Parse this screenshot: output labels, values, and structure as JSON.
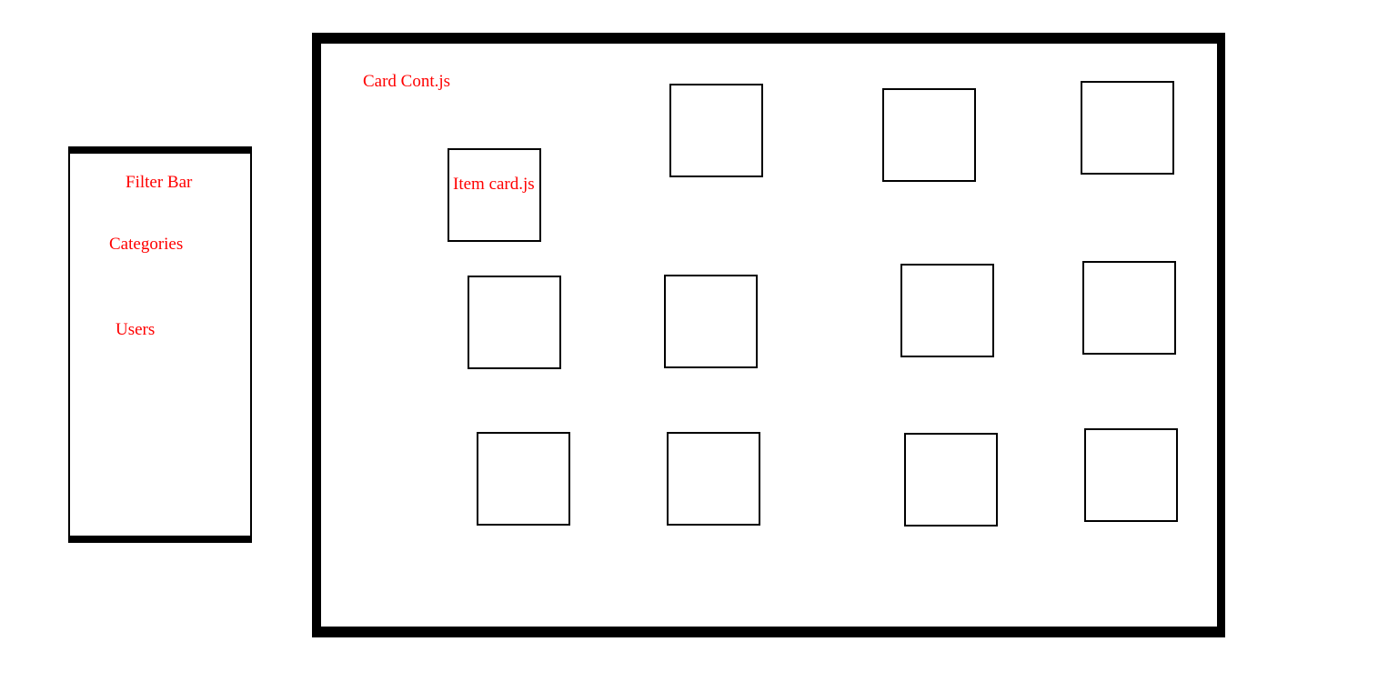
{
  "filter_bar": {
    "title": "Filter Bar",
    "items": [
      "Categories",
      "Users"
    ]
  },
  "card_container": {
    "title": "Card Cont.js",
    "first_card_label": "Item card.js",
    "card_count": 12
  },
  "colors": {
    "label_text": "#ff0000",
    "outline": "#000000",
    "background": "#ffffff"
  }
}
